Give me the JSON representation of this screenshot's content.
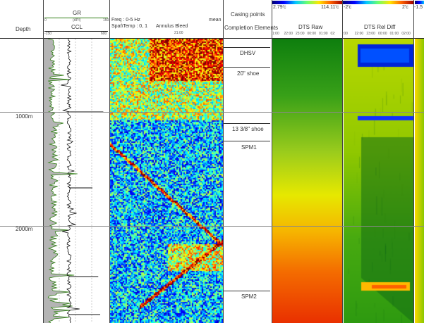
{
  "header": {
    "depth_label": "Depth",
    "gr": {
      "title": "GR",
      "unit": "(API)",
      "min": "0",
      "max": "150"
    },
    "ccl": {
      "title": "CCL",
      "min": "-150",
      "max": "600"
    },
    "fbe": {
      "freq": "Freq : 0-5 Hz",
      "mean": "mean",
      "spat": "Spat\\Temp : 0, 1",
      "name": "Annulus Bleed",
      "time": "21:00"
    },
    "casing": {
      "title": "Casing points",
      "subtitle": "Completion Elements"
    },
    "dts_raw": {
      "min": "2.79'c",
      "max": "114.11'c",
      "title": "DTS Raw",
      "times": [
        "1:00",
        "22:00",
        "23:00",
        "00:00",
        "01:00",
        "02:"
      ]
    },
    "dts_diff": {
      "min": "-2'c",
      "max": "2'c",
      "title": "DTS Rel Diff",
      "times": [
        ":00",
        "22:00",
        "23:00",
        "00:00",
        "01:00",
        "02:00"
      ]
    },
    "extra": {
      "value": "-1.5"
    }
  },
  "depth_marks": [
    "1000m",
    "2000m"
  ],
  "completion_elements": [
    "DHSV",
    "20\" shoe",
    "13 3/8\" shoe",
    "SPM1",
    "SPM2"
  ],
  "colors": {
    "gr_fill": "#b4b4b4",
    "gr_line": "#2e7d12",
    "ccl_line": "#111111",
    "grid": "#9a9a9a"
  }
}
